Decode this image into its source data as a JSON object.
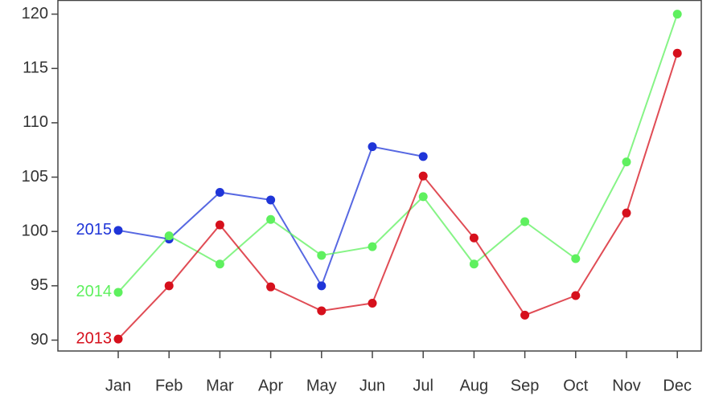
{
  "chart_data": {
    "type": "line",
    "categories": [
      "Jan",
      "Feb",
      "Mar",
      "Apr",
      "May",
      "Jun",
      "Jul",
      "Aug",
      "Sep",
      "Oct",
      "Nov",
      "Dec"
    ],
    "series": [
      {
        "name": "2015",
        "color": "#1f35d8",
        "values": [
          100.1,
          99.3,
          103.6,
          102.9,
          95.0,
          107.8,
          106.9,
          null,
          null,
          null,
          null,
          null
        ]
      },
      {
        "name": "2014",
        "color": "#5ef05e",
        "values": [
          94.4,
          99.6,
          97.0,
          101.1,
          97.8,
          98.6,
          103.2,
          97.0,
          100.9,
          97.5,
          106.4,
          120.0
        ]
      },
      {
        "name": "2013",
        "color": "#d6101c",
        "values": [
          90.1,
          95.0,
          100.6,
          94.9,
          92.7,
          93.4,
          105.1,
          99.4,
          92.3,
          94.1,
          101.7,
          116.4
        ]
      }
    ],
    "ylim": [
      89,
      121.3
    ],
    "yticks": [
      90,
      95,
      100,
      105,
      110,
      115,
      120
    ],
    "grid": false
  }
}
